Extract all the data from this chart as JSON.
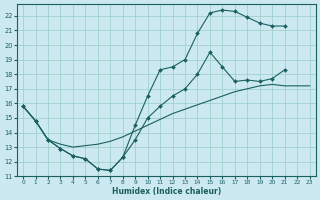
{
  "xlabel": "Humidex (Indice chaleur)",
  "bg_color": "#cce8f0",
  "grid_color": "#99ccc4",
  "line_color": "#1a6060",
  "xlim": [
    -0.5,
    23.5
  ],
  "ylim": [
    11,
    22.8
  ],
  "xticks": [
    0,
    1,
    2,
    3,
    4,
    5,
    6,
    7,
    8,
    9,
    10,
    11,
    12,
    13,
    14,
    15,
    16,
    17,
    18,
    19,
    20,
    21,
    22,
    23
  ],
  "yticks": [
    11,
    12,
    13,
    14,
    15,
    16,
    17,
    18,
    19,
    20,
    21,
    22
  ],
  "line_diag": {
    "x": [
      0,
      1,
      2,
      3,
      4,
      5,
      6,
      7,
      8,
      9,
      10,
      11,
      12,
      13,
      14,
      15,
      16,
      17,
      18,
      19,
      20,
      21,
      22,
      23
    ],
    "y": [
      15.8,
      14.8,
      13.5,
      13.2,
      13.0,
      13.1,
      13.2,
      13.4,
      13.7,
      14.1,
      14.5,
      14.9,
      15.3,
      15.6,
      15.9,
      16.2,
      16.5,
      16.8,
      17.0,
      17.2,
      17.3,
      17.2,
      17.2,
      17.2
    ]
  },
  "line_mid": {
    "x": [
      0,
      1,
      2,
      3,
      4,
      5,
      6,
      7,
      8,
      9,
      10,
      11,
      12,
      13,
      14,
      15,
      16,
      17,
      18,
      19,
      20,
      21
    ],
    "y": [
      15.8,
      14.8,
      13.5,
      12.9,
      12.4,
      12.2,
      11.5,
      11.4,
      12.3,
      13.5,
      15.0,
      15.8,
      16.5,
      17.0,
      18.0,
      19.5,
      18.5,
      17.5,
      17.6,
      17.5,
      17.7,
      18.3
    ]
  },
  "line_top": {
    "x": [
      0,
      1,
      2,
      3,
      4,
      5,
      6,
      7,
      8,
      9,
      10,
      11,
      12,
      13,
      14,
      15,
      16,
      17,
      18,
      19,
      20,
      21
    ],
    "y": [
      15.8,
      14.8,
      13.5,
      12.9,
      12.4,
      12.2,
      11.5,
      11.4,
      12.3,
      14.5,
      16.5,
      18.3,
      18.5,
      19.0,
      20.8,
      22.2,
      22.4,
      22.3,
      21.9,
      21.5,
      21.3,
      21.3
    ]
  }
}
